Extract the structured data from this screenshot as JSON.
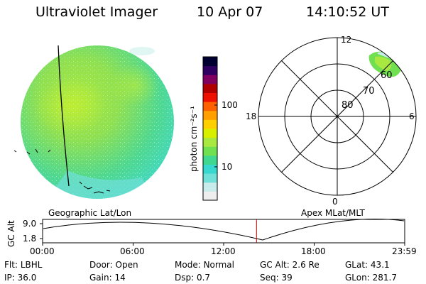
{
  "header": {
    "instrument": "Ultraviolet Imager",
    "date": "10 Apr 07",
    "time": "14:10:52 UT"
  },
  "colorbar": {
    "label": "photon cm⁻²s⁻¹",
    "ticks": [
      {
        "label": "100",
        "value": 100
      },
      {
        "label": "10",
        "value": 10
      }
    ],
    "colors": [
      "#eeeeee",
      "#c8ecec",
      "#70e0d8",
      "#38d8d0",
      "#40d890",
      "#70e050",
      "#a8e840",
      "#d8f000",
      "#ffd000",
      "#ffa000",
      "#ff6000",
      "#ee1000",
      "#b00000",
      "#800060",
      "#300060",
      "#000030"
    ]
  },
  "polar_plot": {
    "lat_labels": [
      "80",
      "70",
      "60"
    ],
    "mlt_labels": {
      "top": "12",
      "left": "18",
      "right": "6",
      "bottom": "0"
    }
  },
  "panels": {
    "left_caption": "Geographic Lat/Lon",
    "right_caption": "Apex MLat/MLT"
  },
  "timeline": {
    "ylabel": "GC Alt",
    "y_ticks": [
      "9.0",
      "1.8"
    ],
    "x_ticks": [
      "00:00",
      "06:00",
      "12:00",
      "18:00",
      "23:59"
    ],
    "current_time_hours": 14.18
  },
  "footer": {
    "row1": [
      {
        "key": "Flt:",
        "value": "LBHL"
      },
      {
        "key": "Door:",
        "value": "Open"
      },
      {
        "key": "Mode:",
        "value": "Normal"
      },
      {
        "key": "GC Alt:",
        "value": "2.6 Re"
      },
      {
        "key": "GLat:",
        "value": "43.1"
      }
    ],
    "row2": [
      {
        "key": "IP:",
        "value": "36.0"
      },
      {
        "key": "Gain:",
        "value": "14"
      },
      {
        "key": "Dsp:",
        "value": "0.7"
      },
      {
        "key": "Seq:",
        "value": "39"
      },
      {
        "key": "GLon:",
        "value": "281.7"
      }
    ]
  }
}
